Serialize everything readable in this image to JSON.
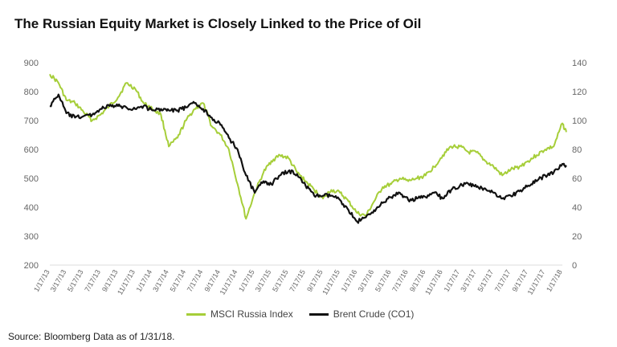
{
  "title": "The Russian Equity Market is Closely Linked to the Price of Oil",
  "source": "Source:  Bloomberg Data as of 1/31/18.",
  "colors": {
    "msci": "#a6ce39",
    "brent": "#111111",
    "axis": "#dddddd"
  },
  "chart_data": {
    "type": "line",
    "title": "The Russian Equity Market is Closely Linked to the Price of Oil",
    "x_tick_labels": [
      "1/17/13",
      "3/17/13",
      "5/17/13",
      "7/17/13",
      "9/17/13",
      "11/17/13",
      "1/17/14",
      "3/17/14",
      "5/17/14",
      "7/17/14",
      "9/17/14",
      "11/17/14",
      "1/17/15",
      "3/17/15",
      "5/17/15",
      "7/17/15",
      "9/17/15",
      "11/17/15",
      "1/17/16",
      "3/17/16",
      "5/17/16",
      "7/17/16",
      "9/17/16",
      "11/17/16",
      "1/17/17",
      "3/17/17",
      "5/17/17",
      "7/17/17",
      "9/17/17",
      "11/17/17",
      "1/17/18"
    ],
    "y_left": {
      "ticks": [
        200,
        300,
        400,
        500,
        600,
        700,
        800,
        900
      ],
      "ylim": [
        200,
        900
      ]
    },
    "y_right": {
      "ticks": [
        0,
        20,
        40,
        60,
        80,
        100,
        120,
        140
      ],
      "ylim": [
        0,
        140
      ]
    },
    "legend_position": "bottom-center",
    "grid": false,
    "series": [
      {
        "name": "MSCI Russia Index",
        "axis": "left",
        "color": "#a6ce39",
        "x": [
          "1/17/13",
          "2/17/13",
          "3/17/13",
          "4/17/13",
          "5/17/13",
          "6/17/13",
          "7/17/13",
          "8/17/13",
          "9/17/13",
          "10/17/13",
          "11/17/13",
          "12/17/13",
          "1/17/14",
          "2/17/14",
          "3/17/14",
          "4/17/14",
          "5/17/14",
          "6/17/14",
          "7/17/14",
          "8/17/14",
          "9/17/14",
          "10/17/14",
          "11/17/14",
          "12/17/14",
          "1/17/15",
          "2/17/15",
          "3/17/15",
          "4/17/15",
          "5/17/15",
          "6/17/15",
          "7/17/15",
          "8/17/15",
          "9/17/15",
          "10/17/15",
          "11/17/15",
          "12/17/15",
          "1/17/16",
          "2/17/16",
          "3/17/16",
          "4/17/16",
          "5/17/16",
          "6/17/16",
          "7/17/16",
          "8/17/16",
          "9/17/16",
          "10/17/16",
          "11/17/16",
          "12/17/16",
          "1/17/17",
          "2/17/17",
          "3/17/17",
          "4/17/17",
          "5/17/17",
          "6/17/17",
          "7/17/17",
          "8/17/17",
          "9/17/17",
          "10/17/17",
          "11/17/17",
          "12/17/17",
          "1/17/18",
          "1/31/18"
        ],
        "values": [
          860,
          830,
          770,
          760,
          730,
          700,
          720,
          750,
          780,
          830,
          810,
          760,
          740,
          720,
          610,
          640,
          700,
          740,
          760,
          680,
          650,
          600,
          480,
          360,
          450,
          520,
          560,
          580,
          570,
          520,
          490,
          460,
          430,
          460,
          450,
          420,
          380,
          370,
          420,
          470,
          480,
          500,
          490,
          500,
          510,
          540,
          580,
          610,
          610,
          590,
          590,
          560,
          540,
          510,
          530,
          540,
          560,
          580,
          600,
          610,
          690,
          660
        ]
      },
      {
        "name": "Brent Crude (CO1)",
        "axis": "right",
        "color": "#111111",
        "x": [
          "1/17/13",
          "2/17/13",
          "3/17/13",
          "4/17/13",
          "5/17/13",
          "6/17/13",
          "7/17/13",
          "8/17/13",
          "9/17/13",
          "10/17/13",
          "11/17/13",
          "12/17/13",
          "1/17/14",
          "2/17/14",
          "3/17/14",
          "4/17/14",
          "5/17/14",
          "6/17/14",
          "7/17/14",
          "8/17/14",
          "9/17/14",
          "10/17/14",
          "11/17/14",
          "12/17/14",
          "1/17/15",
          "2/17/15",
          "3/17/15",
          "4/17/15",
          "5/17/15",
          "6/17/15",
          "7/17/15",
          "8/17/15",
          "9/17/15",
          "10/17/15",
          "11/17/15",
          "12/17/15",
          "1/17/16",
          "2/17/16",
          "3/17/16",
          "4/17/16",
          "5/17/16",
          "6/17/16",
          "7/17/16",
          "8/17/16",
          "9/17/16",
          "10/17/16",
          "11/17/16",
          "12/17/16",
          "1/17/17",
          "2/17/17",
          "3/17/17",
          "4/17/17",
          "5/17/17",
          "6/17/17",
          "7/17/17",
          "8/17/17",
          "9/17/17",
          "10/17/17",
          "11/17/17",
          "12/17/17",
          "1/17/18",
          "1/31/18"
        ],
        "values": [
          110,
          118,
          105,
          102,
          103,
          104,
          108,
          110,
          110,
          109,
          108,
          110,
          107,
          108,
          107,
          107,
          109,
          112,
          108,
          102,
          97,
          88,
          80,
          62,
          50,
          58,
          56,
          62,
          65,
          63,
          55,
          48,
          48,
          48,
          45,
          38,
          30,
          33,
          38,
          43,
          47,
          50,
          45,
          46,
          47,
          50,
          46,
          52,
          55,
          56,
          54,
          53,
          50,
          46,
          48,
          51,
          55,
          58,
          62,
          64,
          70,
          68
        ]
      }
    ]
  }
}
